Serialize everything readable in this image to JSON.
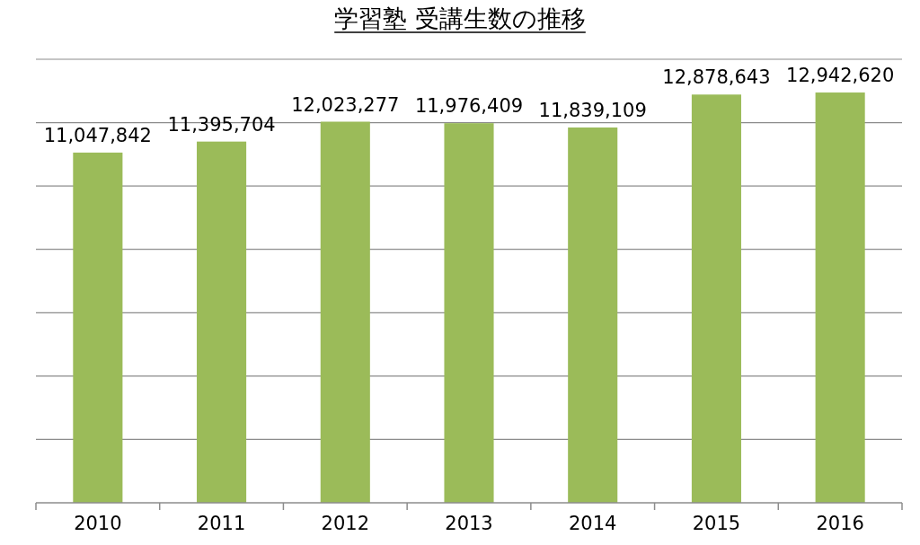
{
  "chart_data": {
    "type": "bar",
    "title": "学習塾 受講生数の推移",
    "categories": [
      "2010",
      "2011",
      "2012",
      "2013",
      "2014",
      "2015",
      "2016"
    ],
    "values": [
      11047842,
      11395704,
      12023277,
      11976409,
      11839109,
      12878643,
      12942620
    ],
    "value_labels": [
      "11,047,842",
      "11,395,704",
      "12,023,277",
      "11,976,409",
      "11,839,109",
      "12,878,643",
      "12,942,620"
    ],
    "color": "#9bbb59",
    "grid": true,
    "tick_labels": "x"
  }
}
